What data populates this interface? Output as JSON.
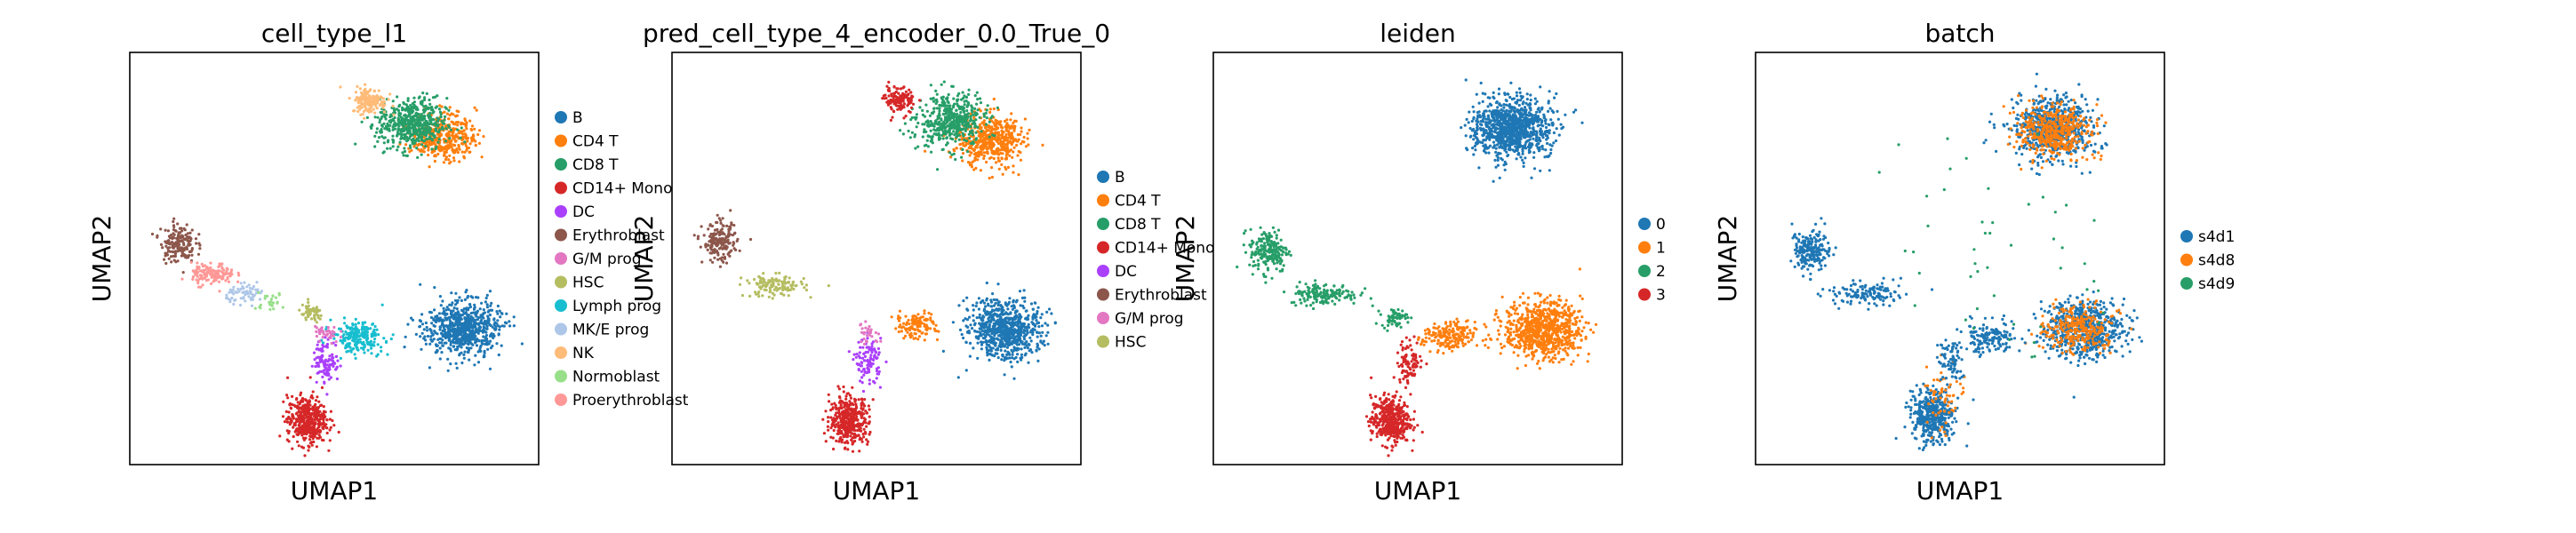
{
  "figure": {
    "type": "umap-scatter-panels",
    "axis_x": "UMAP1",
    "axis_y": "UMAP2"
  },
  "chart_data": [
    {
      "type": "scatter",
      "title": "cell_type_l1",
      "xlabel": "UMAP1",
      "ylabel": "UMAP2",
      "legend": [
        {
          "label": "B",
          "color": "#1f77b4"
        },
        {
          "label": "CD4 T",
          "color": "#ff7f0e"
        },
        {
          "label": "CD8 T",
          "color": "#279e68"
        },
        {
          "label": "CD14+ Mono",
          "color": "#d62728"
        },
        {
          "label": "DC",
          "color": "#aa40fc"
        },
        {
          "label": "Erythroblast",
          "color": "#8c564b"
        },
        {
          "label": "G/M prog",
          "color": "#e377c2"
        },
        {
          "label": "HSC",
          "color": "#b5bd61"
        },
        {
          "label": "Lymph prog",
          "color": "#17becf"
        },
        {
          "label": "MK/E prog",
          "color": "#aec7e8"
        },
        {
          "label": "NK",
          "color": "#ffbb78"
        },
        {
          "label": "Normoblast",
          "color": "#98df8a"
        },
        {
          "label": "Proerythroblast",
          "color": "#ff9896"
        }
      ],
      "clusters": [
        {
          "group": "B",
          "cx": 8.3,
          "cy": 3.2,
          "sx": 0.85,
          "sy": 0.65,
          "n": 700
        },
        {
          "group": "Lymph prog",
          "cx": 5.6,
          "cy": 3.0,
          "sx": 0.6,
          "sy": 0.35,
          "n": 220
        },
        {
          "group": "CD4 T",
          "cx": 7.8,
          "cy": 8.1,
          "sx": 0.75,
          "sy": 0.55,
          "n": 380
        },
        {
          "group": "CD8 T",
          "cx": 7.0,
          "cy": 8.4,
          "sx": 0.8,
          "sy": 0.6,
          "n": 520
        },
        {
          "group": "NK",
          "cx": 5.9,
          "cy": 9.0,
          "sx": 0.4,
          "sy": 0.3,
          "n": 160
        },
        {
          "group": "CD14+ Mono",
          "cx": 4.3,
          "cy": 0.9,
          "sx": 0.45,
          "sy": 0.55,
          "n": 420
        },
        {
          "group": "DC",
          "cx": 4.8,
          "cy": 2.4,
          "sx": 0.3,
          "sy": 0.5,
          "n": 110
        },
        {
          "group": "Erythroblast",
          "cx": 1.0,
          "cy": 5.4,
          "sx": 0.4,
          "sy": 0.45,
          "n": 170
        },
        {
          "group": "Proerythroblast",
          "cx": 1.9,
          "cy": 4.6,
          "sx": 0.5,
          "sy": 0.25,
          "n": 140
        },
        {
          "group": "MK/E prog",
          "cx": 2.8,
          "cy": 4.1,
          "sx": 0.5,
          "sy": 0.2,
          "n": 70
        },
        {
          "group": "HSC",
          "cx": 4.4,
          "cy": 3.6,
          "sx": 0.3,
          "sy": 0.2,
          "n": 60
        },
        {
          "group": "G/M prog",
          "cx": 4.8,
          "cy": 3.1,
          "sx": 0.3,
          "sy": 0.25,
          "n": 40
        },
        {
          "group": "Normoblast",
          "cx": 3.3,
          "cy": 3.9,
          "sx": 0.4,
          "sy": 0.2,
          "n": 25
        }
      ]
    },
    {
      "type": "scatter",
      "title": "pred_cell_type_4_encoder_0.0_True_0",
      "xlabel": "UMAP1",
      "ylabel": "UMAP2",
      "legend": [
        {
          "label": "B",
          "color": "#1f77b4"
        },
        {
          "label": "CD4 T",
          "color": "#ff7f0e"
        },
        {
          "label": "CD8 T",
          "color": "#279e68"
        },
        {
          "label": "CD14+ Mono",
          "color": "#d62728"
        },
        {
          "label": "DC",
          "color": "#aa40fc"
        },
        {
          "label": "Erythroblast",
          "color": "#8c564b"
        },
        {
          "label": "G/M prog",
          "color": "#e377c2"
        },
        {
          "label": "HSC",
          "color": "#b5bd61"
        }
      ],
      "clusters": [
        {
          "group": "B",
          "cx": 8.3,
          "cy": 3.2,
          "sx": 0.85,
          "sy": 0.65,
          "n": 750
        },
        {
          "group": "CD4 T",
          "cx": 7.9,
          "cy": 8.0,
          "sx": 0.75,
          "sy": 0.6,
          "n": 520
        },
        {
          "group": "CD4 T",
          "cx": 6.0,
          "cy": 3.3,
          "sx": 0.5,
          "sy": 0.3,
          "n": 120
        },
        {
          "group": "CD8 T",
          "cx": 6.9,
          "cy": 8.5,
          "sx": 0.75,
          "sy": 0.6,
          "n": 480
        },
        {
          "group": "CD14+ Mono",
          "cx": 5.6,
          "cy": 9.0,
          "sx": 0.35,
          "sy": 0.3,
          "n": 130
        },
        {
          "group": "CD14+ Mono",
          "cx": 4.3,
          "cy": 0.9,
          "sx": 0.45,
          "sy": 0.55,
          "n": 420
        },
        {
          "group": "DC",
          "cx": 4.8,
          "cy": 2.4,
          "sx": 0.3,
          "sy": 0.5,
          "n": 110
        },
        {
          "group": "Erythroblast",
          "cx": 1.0,
          "cy": 5.4,
          "sx": 0.4,
          "sy": 0.45,
          "n": 180
        },
        {
          "group": "HSC",
          "cx": 2.4,
          "cy": 4.3,
          "sx": 0.7,
          "sy": 0.25,
          "n": 130
        },
        {
          "group": "G/M prog",
          "cx": 4.8,
          "cy": 3.1,
          "sx": 0.3,
          "sy": 0.25,
          "n": 30
        }
      ]
    },
    {
      "type": "scatter",
      "title": "leiden",
      "xlabel": "UMAP1",
      "ylabel": "UMAP2",
      "legend": [
        {
          "label": "0",
          "color": "#1f77b4"
        },
        {
          "label": "1",
          "color": "#ff7f0e"
        },
        {
          "label": "2",
          "color": "#279e68"
        },
        {
          "label": "3",
          "color": "#d62728"
        }
      ],
      "clusters": [
        {
          "group": "0",
          "cx": 7.4,
          "cy": 8.3,
          "sx": 0.9,
          "sy": 0.7,
          "n": 1000
        },
        {
          "group": "1",
          "cx": 8.2,
          "cy": 3.2,
          "sx": 0.9,
          "sy": 0.65,
          "n": 800
        },
        {
          "group": "1",
          "cx": 5.8,
          "cy": 3.0,
          "sx": 0.6,
          "sy": 0.35,
          "n": 200
        },
        {
          "group": "2",
          "cx": 1.2,
          "cy": 5.2,
          "sx": 0.45,
          "sy": 0.5,
          "n": 200
        },
        {
          "group": "2",
          "cx": 2.6,
          "cy": 4.1,
          "sx": 0.8,
          "sy": 0.25,
          "n": 160
        },
        {
          "group": "2",
          "cx": 4.4,
          "cy": 3.5,
          "sx": 0.3,
          "sy": 0.2,
          "n": 60
        },
        {
          "group": "3",
          "cx": 4.3,
          "cy": 0.9,
          "sx": 0.45,
          "sy": 0.55,
          "n": 420
        },
        {
          "group": "3",
          "cx": 4.8,
          "cy": 2.4,
          "sx": 0.3,
          "sy": 0.5,
          "n": 90
        }
      ]
    },
    {
      "type": "scatter",
      "title": "batch",
      "xlabel": "UMAP1",
      "ylabel": "UMAP2",
      "legend": [
        {
          "label": "s4d1",
          "color": "#1f77b4"
        },
        {
          "label": "s4d8",
          "color": "#ff7f0e"
        },
        {
          "label": "s4d9",
          "color": "#279e68"
        }
      ],
      "clusters": [
        {
          "group": "s4d1",
          "cx": 7.4,
          "cy": 8.3,
          "sx": 0.9,
          "sy": 0.7,
          "n": 700
        },
        {
          "group": "s4d8",
          "cx": 7.4,
          "cy": 8.2,
          "sx": 0.8,
          "sy": 0.6,
          "n": 420
        },
        {
          "group": "s4d1",
          "cx": 8.2,
          "cy": 3.2,
          "sx": 0.9,
          "sy": 0.65,
          "n": 650
        },
        {
          "group": "s4d8",
          "cx": 8.0,
          "cy": 3.2,
          "sx": 0.8,
          "sy": 0.55,
          "n": 260
        },
        {
          "group": "s4d1",
          "cx": 5.8,
          "cy": 3.0,
          "sx": 0.6,
          "sy": 0.35,
          "n": 150
        },
        {
          "group": "s4d1",
          "cx": 1.2,
          "cy": 5.2,
          "sx": 0.45,
          "sy": 0.5,
          "n": 200
        },
        {
          "group": "s4d1",
          "cx": 2.6,
          "cy": 4.1,
          "sx": 0.8,
          "sy": 0.25,
          "n": 130
        },
        {
          "group": "s4d1",
          "cx": 4.3,
          "cy": 1.0,
          "sx": 0.5,
          "sy": 0.6,
          "n": 420
        },
        {
          "group": "s4d8",
          "cx": 4.6,
          "cy": 1.5,
          "sx": 0.5,
          "sy": 0.8,
          "n": 60
        },
        {
          "group": "s4d1",
          "cx": 4.8,
          "cy": 2.4,
          "sx": 0.3,
          "sy": 0.5,
          "n": 80
        },
        {
          "group": "s4d9",
          "cx": 6.5,
          "cy": 5.0,
          "sx": 3.0,
          "sy": 2.5,
          "n": 50
        }
      ]
    }
  ]
}
